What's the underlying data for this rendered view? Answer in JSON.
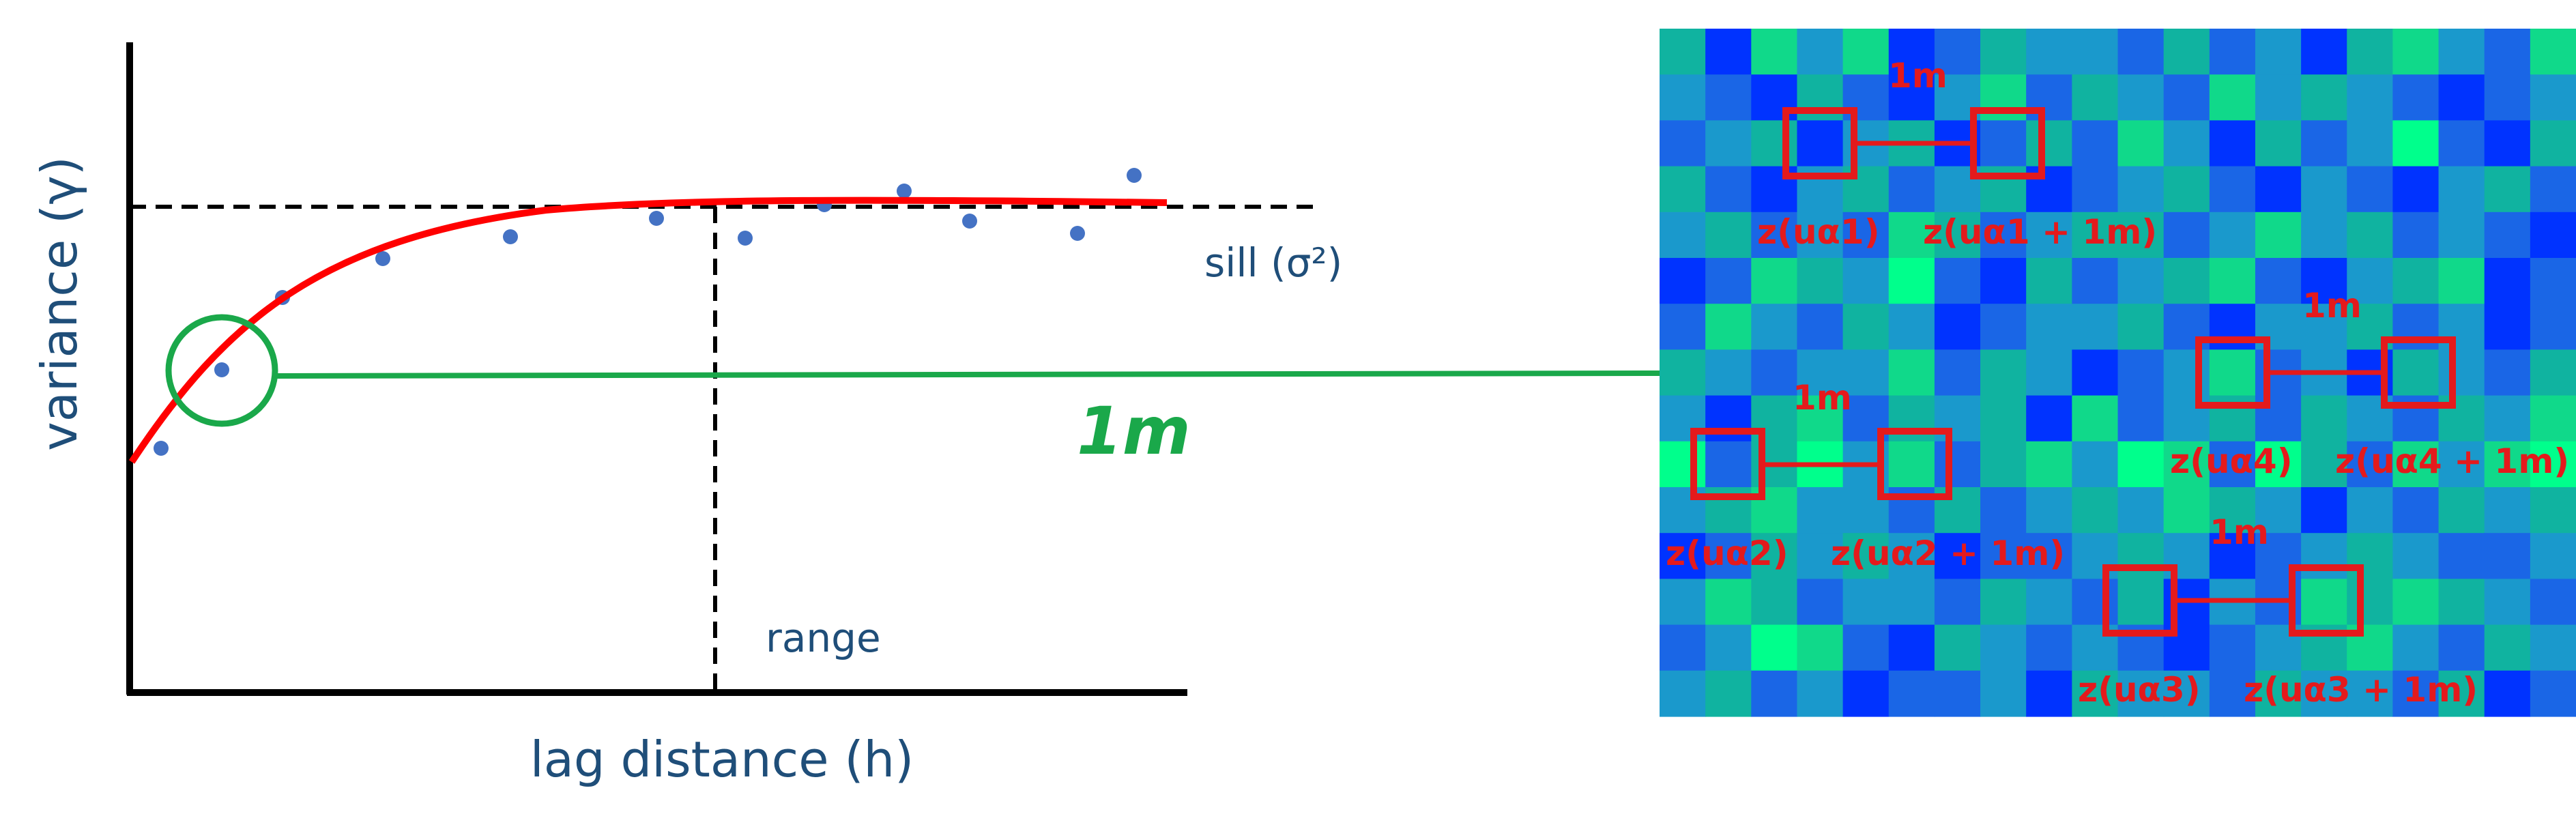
{
  "variogram": {
    "ylabel": "variance (γ)",
    "xlabel": "lag distance (h)",
    "sill_label": "sill (σ²)",
    "range_label": "range",
    "lag_label": "1m"
  },
  "grid": {
    "colors": [
      "#0033ff",
      "#1a66e6",
      "#1a99cc",
      "#10b3a0",
      "#10d98a",
      "#00ff8c"
    ],
    "cells": [
      [
        3,
        0,
        4,
        2,
        4,
        0,
        1,
        3,
        2,
        2,
        1,
        3,
        1,
        2,
        0,
        3,
        4,
        2,
        1,
        4
      ],
      [
        2,
        1,
        0,
        3,
        1,
        0,
        2,
        4,
        1,
        3,
        2,
        1,
        4,
        2,
        3,
        2,
        1,
        0,
        1,
        2
      ],
      [
        1,
        2,
        3,
        0,
        2,
        3,
        0,
        1,
        3,
        1,
        4,
        2,
        0,
        3,
        1,
        2,
        5,
        1,
        0,
        3
      ],
      [
        3,
        1,
        0,
        2,
        3,
        1,
        2,
        3,
        0,
        1,
        2,
        3,
        1,
        0,
        2,
        1,
        0,
        2,
        3,
        1
      ],
      [
        2,
        3,
        1,
        2,
        1,
        4,
        3,
        1,
        2,
        3,
        3,
        1,
        2,
        4,
        2,
        3,
        1,
        2,
        1,
        0
      ],
      [
        0,
        1,
        4,
        3,
        2,
        5,
        1,
        0,
        3,
        1,
        2,
        3,
        4,
        1,
        0,
        2,
        3,
        4,
        0,
        1
      ],
      [
        1,
        4,
        2,
        1,
        3,
        2,
        0,
        1,
        2,
        2,
        3,
        1,
        0,
        2,
        2,
        3,
        1,
        2,
        0,
        1
      ],
      [
        3,
        2,
        1,
        2,
        2,
        4,
        1,
        3,
        2,
        0,
        1,
        2,
        4,
        1,
        2,
        0,
        3,
        2,
        1,
        3
      ],
      [
        2,
        0,
        3,
        4,
        1,
        3,
        2,
        3,
        0,
        4,
        1,
        2,
        3,
        1,
        3,
        2,
        1,
        3,
        2,
        4
      ],
      [
        5,
        1,
        3,
        5,
        2,
        4,
        1,
        3,
        4,
        2,
        5,
        4,
        1,
        5,
        3,
        1,
        4,
        2,
        4,
        5
      ],
      [
        2,
        3,
        4,
        2,
        2,
        1,
        3,
        1,
        2,
        3,
        2,
        4,
        3,
        2,
        0,
        2,
        1,
        3,
        2,
        3
      ],
      [
        0,
        1,
        3,
        2,
        3,
        2,
        0,
        1,
        1,
        2,
        3,
        2,
        0,
        1,
        2,
        3,
        2,
        1,
        1,
        2
      ],
      [
        2,
        4,
        3,
        1,
        2,
        2,
        1,
        3,
        2,
        1,
        3,
        0,
        2,
        1,
        4,
        3,
        4,
        3,
        2,
        1
      ],
      [
        1,
        2,
        5,
        4,
        1,
        0,
        3,
        2,
        1,
        2,
        1,
        0,
        1,
        2,
        3,
        4,
        2,
        1,
        3,
        2
      ],
      [
        2,
        3,
        1,
        2,
        0,
        1,
        1,
        2,
        0,
        3,
        2,
        2,
        1,
        3,
        2,
        2,
        1,
        3,
        0,
        1
      ]
    ],
    "pairs": [
      {
        "gap": "1m",
        "left": "z(uα1)",
        "right": "z(uα1 + 1m)"
      },
      {
        "gap": "1m",
        "left": "z(uα4)",
        "right": "z(uα4 + 1m)"
      },
      {
        "gap": "1m",
        "left": "z(uα2)",
        "right": "z(uα2 + 1m)"
      },
      {
        "gap": "1m",
        "left": "z(uα3)",
        "right": "z(uα3 + 1m)"
      }
    ]
  }
}
